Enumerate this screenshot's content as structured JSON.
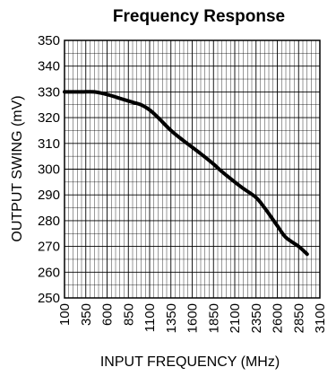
{
  "chart_data": {
    "type": "line",
    "title": "Frequency Response",
    "xlabel": "INPUT FREQUENCY (MHz)",
    "ylabel": "OUTPUT SWING (mV)",
    "xlim": [
      100,
      3100
    ],
    "ylim": [
      250,
      350
    ],
    "x_ticks": [
      100,
      350,
      600,
      850,
      1100,
      1350,
      1600,
      1850,
      2100,
      2350,
      2600,
      2850,
      3100
    ],
    "y_ticks": [
      250,
      260,
      270,
      280,
      290,
      300,
      310,
      320,
      330,
      340,
      350
    ],
    "x_minor_step": 50,
    "y_minor_step": 5,
    "grid": true,
    "line_color": "#000000",
    "series": [
      {
        "x": [
          100,
          300,
          450,
          600,
          750,
          900,
          1000,
          1100,
          1200,
          1350,
          1500,
          1600,
          1700,
          1850,
          1950,
          2100,
          2200,
          2350,
          2450,
          2600,
          2700,
          2850,
          2950
        ],
        "values": [
          330,
          330,
          330,
          329,
          327.5,
          326,
          325,
          323,
          320,
          315,
          311,
          308.5,
          306,
          302,
          299,
          295,
          292.5,
          289,
          285,
          278,
          273.5,
          270,
          267
        ]
      }
    ]
  }
}
